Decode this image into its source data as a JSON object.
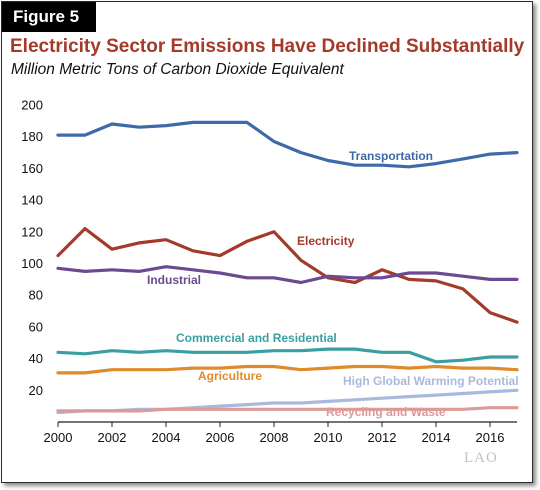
{
  "figure_label": "Figure 5",
  "logo_text": "LAO",
  "chart_data": {
    "type": "line",
    "title": "Electricity Sector Emissions Have Declined Substantially",
    "subtitle": "Million Metric Tons of Carbon Dioxide Equivalent",
    "xlabel": "",
    "ylabel": "",
    "xlim": [
      2000,
      2017
    ],
    "ylim": [
      0,
      200
    ],
    "x_ticks": [
      2000,
      2002,
      2004,
      2006,
      2008,
      2010,
      2012,
      2014,
      2016
    ],
    "y_ticks": [
      20,
      40,
      60,
      80,
      100,
      120,
      140,
      160,
      180,
      200
    ],
    "grid": false,
    "legend": "none",
    "x": [
      2000,
      2001,
      2002,
      2003,
      2004,
      2005,
      2006,
      2007,
      2008,
      2009,
      2010,
      2011,
      2012,
      2013,
      2014,
      2015,
      2016,
      2017
    ],
    "series": [
      {
        "name": "Transportation",
        "color": "#3d6aa8",
        "values": [
          181,
          181,
          188,
          186,
          187,
          189,
          189,
          189,
          177,
          170,
          165,
          162,
          162,
          161,
          163,
          166,
          169,
          170
        ]
      },
      {
        "name": "Electricity",
        "color": "#a43a2a",
        "values": [
          105,
          122,
          109,
          113,
          115,
          108,
          105,
          114,
          120,
          102,
          91,
          88,
          96,
          90,
          89,
          84,
          69,
          63
        ]
      },
      {
        "name": "Industrial",
        "color": "#6c4a91",
        "values": [
          97,
          95,
          96,
          95,
          98,
          96,
          94,
          91,
          91,
          88,
          92,
          91,
          91,
          94,
          94,
          92,
          90,
          90
        ]
      },
      {
        "name": "Commercial and Residential",
        "color": "#3a9fa2",
        "values": [
          44,
          43,
          45,
          44,
          45,
          44,
          44,
          44,
          45,
          45,
          46,
          46,
          44,
          44,
          38,
          39,
          41,
          41
        ]
      },
      {
        "name": "Agriculture",
        "color": "#e08a2c",
        "values": [
          31,
          31,
          33,
          33,
          33,
          34,
          34,
          35,
          35,
          33,
          34,
          35,
          35,
          34,
          35,
          34,
          34,
          33
        ]
      },
      {
        "name": "High Global Warming Potential",
        "color": "#a9b9dd",
        "values": [
          6,
          7,
          7,
          8,
          8,
          9,
          10,
          11,
          12,
          12,
          13,
          14,
          15,
          16,
          17,
          18,
          19,
          20
        ]
      },
      {
        "name": "Recycling and Waste",
        "color": "#dc9a98",
        "values": [
          7,
          7,
          7,
          7,
          8,
          8,
          8,
          8,
          8,
          8,
          8,
          8,
          8,
          8,
          8,
          8,
          9,
          9
        ]
      }
    ]
  }
}
